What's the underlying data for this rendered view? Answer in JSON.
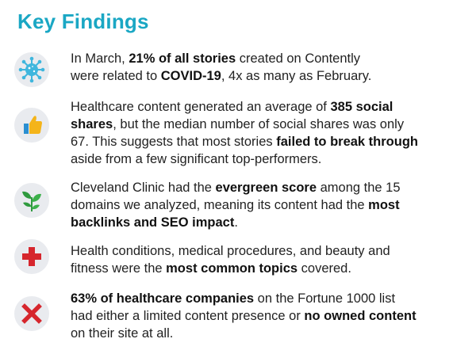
{
  "title": "Key Findings",
  "findings": [
    {
      "icon": "virus-icon",
      "segments": [
        {
          "t": "In March, ",
          "b": false
        },
        {
          "t": "21% of all stories",
          "b": true
        },
        {
          "t": " created on Contently\nwere related to ",
          "b": false
        },
        {
          "t": "COVID-19",
          "b": true
        },
        {
          "t": ", 4x as many as February.",
          "b": false
        }
      ]
    },
    {
      "icon": "thumbs-up-icon",
      "segments": [
        {
          "t": "Healthcare content generated an average of ",
          "b": false
        },
        {
          "t": "385 social\nshares",
          "b": true
        },
        {
          "t": ", but the median number of social shares was only\n67. This suggests that most stories ",
          "b": false
        },
        {
          "t": "failed to break through",
          "b": true
        },
        {
          "t": "\naside from a few significant top-performers.",
          "b": false
        }
      ]
    },
    {
      "icon": "plant-icon",
      "segments": [
        {
          "t": "Cleveland Clinic had the ",
          "b": false
        },
        {
          "t": "evergreen score",
          "b": true
        },
        {
          "t": " among the 15\ndomains we analyzed, meaning its content had the ",
          "b": false
        },
        {
          "t": "most\nbacklinks and SEO impact",
          "b": true
        },
        {
          "t": ".",
          "b": false
        }
      ]
    },
    {
      "icon": "medical-cross-icon",
      "segments": [
        {
          "t": "Health conditions, medical procedures, and beauty and\nfitness were the ",
          "b": false
        },
        {
          "t": "most common topics",
          "b": true
        },
        {
          "t": " covered.",
          "b": false
        }
      ]
    },
    {
      "icon": "x-mark-icon",
      "segments": [
        {
          "t": "63% of healthcare companies",
          "b": true
        },
        {
          "t": " on the Fortune 1000 list\nhad either a limited content presence or ",
          "b": false
        },
        {
          "t": "no owned content",
          "b": true
        },
        {
          "t": "\non their site at all.",
          "b": false
        }
      ]
    }
  ],
  "colors": {
    "title": "#1aa7c4",
    "virus": "#3fb6dd",
    "thumb": "#f4b41a",
    "plant": "#2f9a3e",
    "cross": "#d6262d",
    "x_mark": "#d6262d",
    "icon_bg": "#e9ebef"
  }
}
